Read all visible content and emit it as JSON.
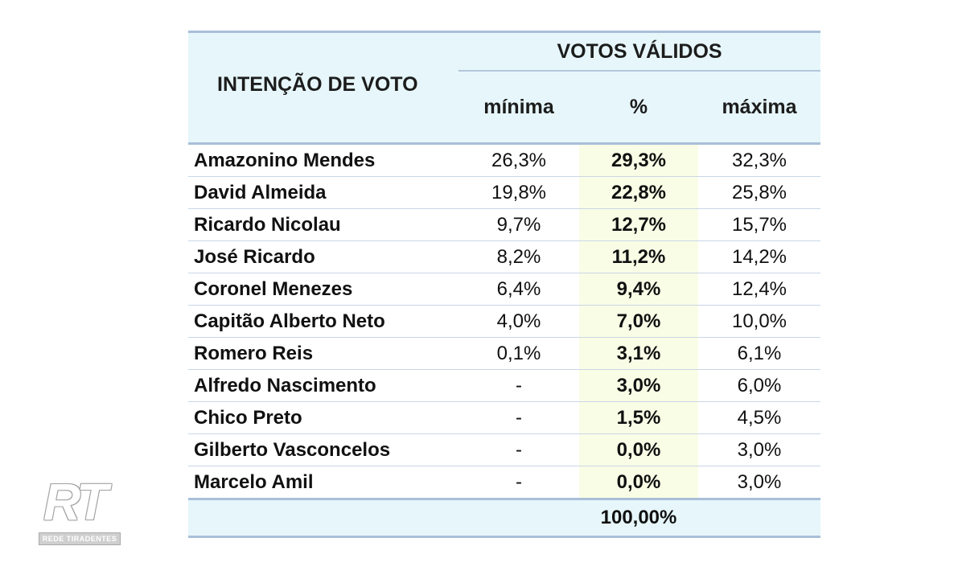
{
  "header": {
    "title": "INTENÇÃO DE VOTO",
    "group": "VOTOS VÁLIDOS",
    "col_min": "mínima",
    "col_pct": "%",
    "col_max": "máxima"
  },
  "rows": [
    {
      "name": "Amazonino Mendes",
      "min": "26,3%",
      "pct": "29,3%",
      "max": "32,3%"
    },
    {
      "name": "David Almeida",
      "min": "19,8%",
      "pct": "22,8%",
      "max": "25,8%"
    },
    {
      "name": "Ricardo Nicolau",
      "min": "9,7%",
      "pct": "12,7%",
      "max": "15,7%"
    },
    {
      "name": "José Ricardo",
      "min": "8,2%",
      "pct": "11,2%",
      "max": "14,2%"
    },
    {
      "name": "Coronel Menezes",
      "min": "6,4%",
      "pct": "9,4%",
      "max": "12,4%"
    },
    {
      "name": "Capitão Alberto Neto",
      "min": "4,0%",
      "pct": "7,0%",
      "max": "10,0%"
    },
    {
      "name": "Romero Reis",
      "min": "0,1%",
      "pct": "3,1%",
      "max": "6,1%"
    },
    {
      "name": "Alfredo Nascimento",
      "min": "-",
      "pct": "3,0%",
      "max": "6,0%"
    },
    {
      "name": "Chico Preto",
      "min": "-",
      "pct": "1,5%",
      "max": "4,5%"
    },
    {
      "name": "Gilberto Vasconcelos",
      "min": "-",
      "pct": "0,0%",
      "max": "3,0%"
    },
    {
      "name": "Marcelo Amil",
      "min": "-",
      "pct": "0,0%",
      "max": "3,0%"
    }
  ],
  "total": "100,00%",
  "logo": {
    "mark": "RT",
    "caption": "REDE TIRADENTES"
  }
}
